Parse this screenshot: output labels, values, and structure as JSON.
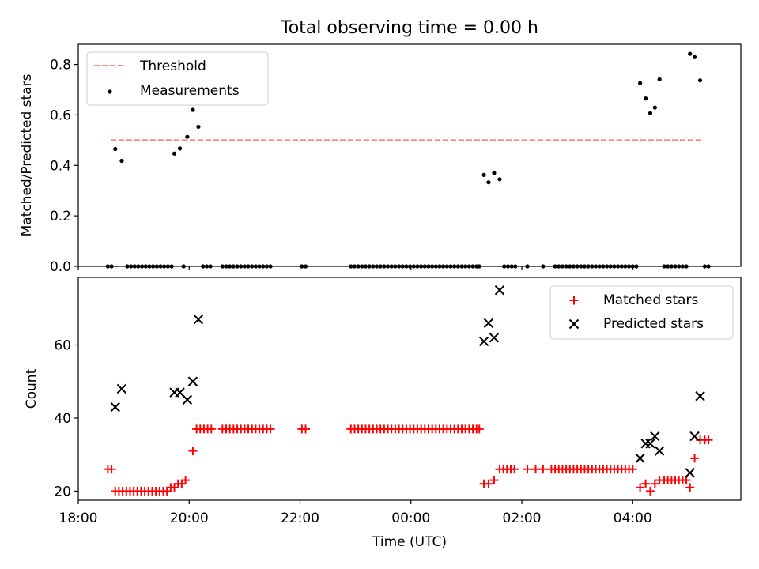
{
  "figure": {
    "title": "Total observing time = 0.00 h",
    "xlabel": "Time (UTC)"
  },
  "chart_data": [
    {
      "type": "scatter",
      "ylabel": "Matched/Predicted stars",
      "xlim": [
        "18:00",
        "05:57"
      ],
      "ylim": [
        0,
        0.88
      ],
      "yticks": [
        "0.0",
        "0.2",
        "0.4",
        "0.6",
        "0.8"
      ],
      "legend_position": "top-left",
      "colors": {
        "threshold": "#ff7f7f",
        "measurements": "#000000"
      },
      "threshold": {
        "name": "Threshold",
        "value": 0.5,
        "x_start": "18:35",
        "x_end": "05:15"
      },
      "measurements": {
        "name": "Measurements",
        "points": [
          [
            "18:32",
            0
          ],
          [
            "18:36",
            0
          ],
          [
            "18:40",
            0.465
          ],
          [
            "18:47",
            0.418
          ],
          [
            "18:53",
            0
          ],
          [
            "18:57",
            0
          ],
          [
            "19:01",
            0
          ],
          [
            "19:05",
            0
          ],
          [
            "19:09",
            0
          ],
          [
            "19:13",
            0
          ],
          [
            "19:17",
            0
          ],
          [
            "19:21",
            0
          ],
          [
            "19:25",
            0
          ],
          [
            "19:29",
            0
          ],
          [
            "19:33",
            0
          ],
          [
            "19:37",
            0
          ],
          [
            "19:41",
            0
          ],
          [
            "19:44",
            0.447
          ],
          [
            "19:50",
            0.467
          ],
          [
            "19:54",
            0
          ],
          [
            "19:58",
            0.513
          ],
          [
            "20:04",
            0.62
          ],
          [
            "20:10",
            0.553
          ],
          [
            "20:15",
            0
          ],
          [
            "20:19",
            0
          ],
          [
            "20:23",
            0
          ],
          [
            "20:36",
            0
          ],
          [
            "20:40",
            0
          ],
          [
            "20:44",
            0
          ],
          [
            "20:48",
            0
          ],
          [
            "20:52",
            0
          ],
          [
            "20:56",
            0
          ],
          [
            "21:00",
            0
          ],
          [
            "21:04",
            0
          ],
          [
            "21:08",
            0
          ],
          [
            "21:12",
            0
          ],
          [
            "21:16",
            0
          ],
          [
            "21:20",
            0
          ],
          [
            "21:24",
            0
          ],
          [
            "21:28",
            0
          ],
          [
            "22:02",
            0
          ],
          [
            "22:06",
            0
          ],
          [
            "22:55",
            0
          ],
          [
            "22:59",
            0
          ],
          [
            "23:03",
            0
          ],
          [
            "23:07",
            0
          ],
          [
            "23:11",
            0
          ],
          [
            "23:15",
            0
          ],
          [
            "23:19",
            0
          ],
          [
            "23:23",
            0
          ],
          [
            "23:27",
            0
          ],
          [
            "23:31",
            0
          ],
          [
            "23:35",
            0
          ],
          [
            "23:39",
            0
          ],
          [
            "23:43",
            0
          ],
          [
            "23:47",
            0
          ],
          [
            "23:51",
            0
          ],
          [
            "23:55",
            0
          ],
          [
            "23:59",
            0
          ],
          [
            "00:03",
            0
          ],
          [
            "00:07",
            0
          ],
          [
            "00:11",
            0
          ],
          [
            "00:15",
            0
          ],
          [
            "00:19",
            0
          ],
          [
            "00:23",
            0
          ],
          [
            "00:27",
            0
          ],
          [
            "00:31",
            0
          ],
          [
            "00:35",
            0
          ],
          [
            "00:39",
            0
          ],
          [
            "00:43",
            0
          ],
          [
            "00:47",
            0
          ],
          [
            "00:51",
            0
          ],
          [
            "00:55",
            0
          ],
          [
            "00:59",
            0
          ],
          [
            "01:03",
            0
          ],
          [
            "01:07",
            0
          ],
          [
            "01:11",
            0
          ],
          [
            "01:14",
            0
          ],
          [
            "01:19",
            0.362
          ],
          [
            "01:24",
            0.333
          ],
          [
            "01:30",
            0.37
          ],
          [
            "01:36",
            0.345
          ],
          [
            "01:41",
            0
          ],
          [
            "01:45",
            0
          ],
          [
            "01:49",
            0
          ],
          [
            "01:53",
            0
          ],
          [
            "02:06",
            0
          ],
          [
            "02:23",
            0
          ],
          [
            "02:36",
            0
          ],
          [
            "02:40",
            0
          ],
          [
            "02:44",
            0
          ],
          [
            "02:48",
            0
          ],
          [
            "02:52",
            0
          ],
          [
            "02:56",
            0
          ],
          [
            "03:00",
            0
          ],
          [
            "03:04",
            0
          ],
          [
            "03:08",
            0
          ],
          [
            "03:12",
            0
          ],
          [
            "03:16",
            0
          ],
          [
            "03:20",
            0
          ],
          [
            "03:24",
            0
          ],
          [
            "03:28",
            0
          ],
          [
            "03:32",
            0
          ],
          [
            "03:36",
            0
          ],
          [
            "03:40",
            0
          ],
          [
            "03:44",
            0
          ],
          [
            "03:48",
            0
          ],
          [
            "03:52",
            0
          ],
          [
            "03:56",
            0
          ],
          [
            "04:00",
            0
          ],
          [
            "04:04",
            0
          ],
          [
            "04:08",
            0.726
          ],
          [
            "04:14",
            0.665
          ],
          [
            "04:19",
            0.607
          ],
          [
            "04:24",
            0.629
          ],
          [
            "04:29",
            0.741
          ],
          [
            "04:34",
            0
          ],
          [
            "04:38",
            0
          ],
          [
            "04:42",
            0
          ],
          [
            "04:46",
            0
          ],
          [
            "04:50",
            0
          ],
          [
            "04:54",
            0
          ],
          [
            "04:58",
            0
          ],
          [
            "05:02",
            0.842
          ],
          [
            "05:07",
            0.829
          ],
          [
            "05:13",
            0.737
          ],
          [
            "05:18",
            0
          ],
          [
            "05:22",
            0
          ]
        ]
      }
    },
    {
      "type": "scatter",
      "ylabel": "Count",
      "xlim": [
        "18:00",
        "05:57"
      ],
      "ylim": [
        17.5,
        78.5
      ],
      "yticks": [
        "20",
        "40",
        "60"
      ],
      "xticks": [
        "18:00",
        "20:00",
        "22:00",
        "00:00",
        "02:00",
        "04:00"
      ],
      "legend_position": "top-right",
      "colors": {
        "matched": "#ff0000",
        "predicted": "#000000"
      },
      "series": [
        {
          "name": "Matched stars",
          "marker": "plus",
          "points": [
            [
              "18:32",
              26
            ],
            [
              "18:36",
              26
            ],
            [
              "18:40",
              20
            ],
            [
              "18:44",
              20
            ],
            [
              "18:48",
              20
            ],
            [
              "18:52",
              20
            ],
            [
              "18:56",
              20
            ],
            [
              "19:00",
              20
            ],
            [
              "19:04",
              20
            ],
            [
              "19:08",
              20
            ],
            [
              "19:12",
              20
            ],
            [
              "19:16",
              20
            ],
            [
              "19:20",
              20
            ],
            [
              "19:24",
              20
            ],
            [
              "19:28",
              20
            ],
            [
              "19:32",
              20
            ],
            [
              "19:36",
              20
            ],
            [
              "19:40",
              21
            ],
            [
              "19:44",
              21
            ],
            [
              "19:48",
              22
            ],
            [
              "19:52",
              22
            ],
            [
              "19:56",
              23
            ],
            [
              "20:04",
              31
            ],
            [
              "20:08",
              37
            ],
            [
              "20:12",
              37
            ],
            [
              "20:16",
              37
            ],
            [
              "20:20",
              37
            ],
            [
              "20:24",
              37
            ],
            [
              "20:36",
              37
            ],
            [
              "20:40",
              37
            ],
            [
              "20:44",
              37
            ],
            [
              "20:48",
              37
            ],
            [
              "20:52",
              37
            ],
            [
              "20:56",
              37
            ],
            [
              "21:00",
              37
            ],
            [
              "21:04",
              37
            ],
            [
              "21:08",
              37
            ],
            [
              "21:12",
              37
            ],
            [
              "21:16",
              37
            ],
            [
              "21:20",
              37
            ],
            [
              "21:24",
              37
            ],
            [
              "21:28",
              37
            ],
            [
              "22:02",
              37
            ],
            [
              "22:06",
              37
            ],
            [
              "22:55",
              37
            ],
            [
              "22:59",
              37
            ],
            [
              "23:03",
              37
            ],
            [
              "23:07",
              37
            ],
            [
              "23:11",
              37
            ],
            [
              "23:15",
              37
            ],
            [
              "23:19",
              37
            ],
            [
              "23:23",
              37
            ],
            [
              "23:27",
              37
            ],
            [
              "23:31",
              37
            ],
            [
              "23:35",
              37
            ],
            [
              "23:39",
              37
            ],
            [
              "23:43",
              37
            ],
            [
              "23:47",
              37
            ],
            [
              "23:51",
              37
            ],
            [
              "23:55",
              37
            ],
            [
              "23:59",
              37
            ],
            [
              "00:03",
              37
            ],
            [
              "00:07",
              37
            ],
            [
              "00:11",
              37
            ],
            [
              "00:15",
              37
            ],
            [
              "00:19",
              37
            ],
            [
              "00:23",
              37
            ],
            [
              "00:27",
              37
            ],
            [
              "00:31",
              37
            ],
            [
              "00:35",
              37
            ],
            [
              "00:39",
              37
            ],
            [
              "00:43",
              37
            ],
            [
              "00:47",
              37
            ],
            [
              "00:51",
              37
            ],
            [
              "00:55",
              37
            ],
            [
              "00:59",
              37
            ],
            [
              "01:03",
              37
            ],
            [
              "01:07",
              37
            ],
            [
              "01:11",
              37
            ],
            [
              "01:14",
              37
            ],
            [
              "01:19",
              22
            ],
            [
              "01:24",
              22
            ],
            [
              "01:30",
              23
            ],
            [
              "01:36",
              26
            ],
            [
              "01:40",
              26
            ],
            [
              "01:44",
              26
            ],
            [
              "01:48",
              26
            ],
            [
              "01:52",
              26
            ],
            [
              "02:06",
              26
            ],
            [
              "02:15",
              26
            ],
            [
              "02:23",
              26
            ],
            [
              "02:32",
              26
            ],
            [
              "02:36",
              26
            ],
            [
              "02:40",
              26
            ],
            [
              "02:44",
              26
            ],
            [
              "02:48",
              26
            ],
            [
              "02:52",
              26
            ],
            [
              "02:56",
              26
            ],
            [
              "03:00",
              26
            ],
            [
              "03:04",
              26
            ],
            [
              "03:08",
              26
            ],
            [
              "03:12",
              26
            ],
            [
              "03:16",
              26
            ],
            [
              "03:20",
              26
            ],
            [
              "03:24",
              26
            ],
            [
              "03:28",
              26
            ],
            [
              "03:32",
              26
            ],
            [
              "03:36",
              26
            ],
            [
              "03:40",
              26
            ],
            [
              "03:44",
              26
            ],
            [
              "03:48",
              26
            ],
            [
              "03:52",
              26
            ],
            [
              "03:56",
              26
            ],
            [
              "04:00",
              26
            ],
            [
              "04:08",
              21
            ],
            [
              "04:14",
              22
            ],
            [
              "04:19",
              20
            ],
            [
              "04:24",
              22
            ],
            [
              "04:29",
              23
            ],
            [
              "04:34",
              23
            ],
            [
              "04:38",
              23
            ],
            [
              "04:42",
              23
            ],
            [
              "04:46",
              23
            ],
            [
              "04:50",
              23
            ],
            [
              "04:54",
              23
            ],
            [
              "04:58",
              23
            ],
            [
              "05:02",
              21
            ],
            [
              "05:07",
              29
            ],
            [
              "05:13",
              34
            ],
            [
              "05:18",
              34
            ],
            [
              "05:22",
              34
            ]
          ]
        },
        {
          "name": "Predicted stars",
          "marker": "x",
          "points": [
            [
              "18:40",
              43
            ],
            [
              "18:47",
              48
            ],
            [
              "19:44",
              47
            ],
            [
              "19:50",
              47
            ],
            [
              "19:58",
              45
            ],
            [
              "20:04",
              50
            ],
            [
              "20:10",
              67
            ],
            [
              "01:19",
              61
            ],
            [
              "01:24",
              66
            ],
            [
              "01:30",
              62
            ],
            [
              "01:36",
              75
            ],
            [
              "04:08",
              29
            ],
            [
              "04:14",
              33
            ],
            [
              "04:19",
              33
            ],
            [
              "04:24",
              35
            ],
            [
              "04:29",
              31
            ],
            [
              "05:02",
              25
            ],
            [
              "05:07",
              35
            ],
            [
              "05:13",
              46
            ]
          ]
        }
      ]
    }
  ]
}
